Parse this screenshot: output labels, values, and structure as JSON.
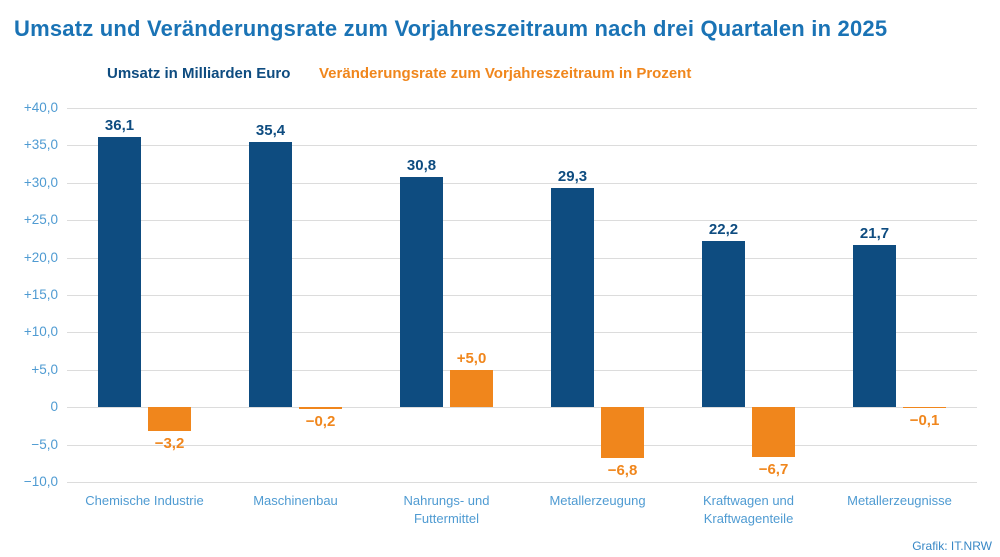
{
  "title": "Umsatz und Veränderungsrate zum Vorjahreszeitraum nach drei Quartalen in 2025",
  "legend": {
    "umsatz": "Umsatz in Milliarden Euro",
    "rate": "Veränderungsrate zum Vorjahreszeitraum in Prozent"
  },
  "credit": "Grafik: IT.NRW",
  "colors": {
    "title_blue": "#1a73b5",
    "navy": "#0e4c80",
    "orange": "#f0861c",
    "axis_blue": "#4f9bd2",
    "gridline": "#dcdcdc",
    "credit_blue": "#3787c5",
    "background": "#ffffff"
  },
  "chart_data": {
    "type": "bar",
    "title": "Umsatz und Veränderungsrate zum Vorjahreszeitraum nach drei Quartalen in 2025",
    "categories": [
      "Chemische Industrie",
      "Maschinenbau",
      "Nahrungs- und Futtermittel",
      "Metallerzeugung",
      "Kraftwagen und Kraftwagenteile",
      "Metallerzeugnisse"
    ],
    "category_lines": [
      [
        "Chemische Industrie"
      ],
      [
        "Maschinenbau"
      ],
      [
        "Nahrungs- und",
        "Futtermittel"
      ],
      [
        "Metallerzeugung"
      ],
      [
        "Kraftwagen und",
        "Kraftwagenteile"
      ],
      [
        "Metallerzeugnisse"
      ]
    ],
    "series": [
      {
        "name": "Umsatz in Milliarden Euro",
        "color": "#0e4c80",
        "values": [
          36.1,
          35.4,
          30.8,
          29.3,
          22.2,
          21.7
        ],
        "labels": [
          "36,1",
          "35,4",
          "30,8",
          "29,3",
          "22,2",
          "21,7"
        ]
      },
      {
        "name": "Veränderungsrate zum Vorjahreszeitraum in Prozent",
        "color": "#f0861c",
        "values": [
          -3.2,
          -0.2,
          5.0,
          -6.8,
          -6.7,
          -0.1
        ],
        "labels": [
          "−3,2",
          "−0,2",
          "+5,0",
          "−6,8",
          "−6,7",
          "−0,1"
        ]
      }
    ],
    "y_axis": {
      "min": -10,
      "max": 40,
      "step": 5,
      "tick_values": [
        40,
        35,
        30,
        25,
        20,
        15,
        10,
        5,
        0,
        -5,
        -10
      ],
      "tick_labels": [
        "+40,0",
        "+35,0",
        "+30,0",
        "+25,0",
        "+20,0",
        "+15,0",
        "+10,0",
        "+5,0",
        "0",
        "−5,0",
        "−10,0"
      ]
    },
    "grid": true,
    "legend_position": "top"
  }
}
